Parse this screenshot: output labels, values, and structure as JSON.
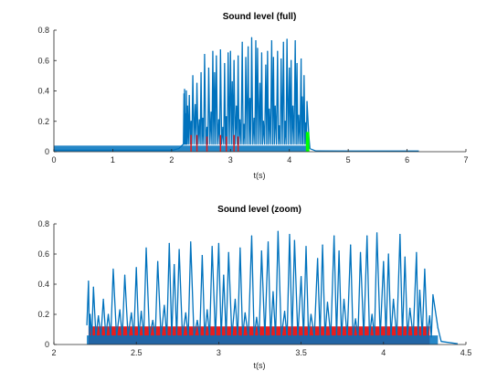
{
  "chart_data": [
    {
      "type": "line",
      "title": "Sound level (full)",
      "xlabel": "t(s)",
      "ylabel": "",
      "xlim": [
        0,
        7
      ],
      "ylim": [
        0,
        0.8
      ],
      "xticks": [
        "0",
        "1",
        "2",
        "3",
        "4",
        "5",
        "6",
        "7"
      ],
      "yticks": [
        "0",
        "0.2",
        "0.4",
        "0.6",
        "0.8"
      ],
      "series": [
        {
          "color": "#0072bd",
          "kind": "level",
          "x": [
            0,
            2.02,
            2.12,
            2.2,
            2.21,
            2.22,
            2.24,
            2.25,
            2.27,
            2.3,
            2.33,
            2.36,
            2.4,
            2.43,
            2.47,
            2.5,
            2.53,
            2.56,
            2.6,
            2.63,
            2.67,
            2.7,
            2.73,
            2.76,
            2.8,
            2.83,
            2.87,
            2.9,
            2.93,
            2.96,
            3.0,
            3.03,
            3.06,
            3.1,
            3.13,
            3.16,
            3.2,
            3.23,
            3.26,
            3.3,
            3.33,
            3.36,
            3.4,
            3.43,
            3.46,
            3.5,
            3.53,
            3.56,
            3.6,
            3.63,
            3.66,
            3.7,
            3.73,
            3.76,
            3.8,
            3.83,
            3.86,
            3.9,
            3.93,
            3.96,
            4.0,
            4.03,
            4.06,
            4.1,
            4.13,
            4.16,
            4.2,
            4.22,
            4.25,
            4.28,
            4.3,
            4.33
          ],
          "y": [
            0.01,
            0.01,
            0.02,
            0.05,
            0.38,
            0.41,
            0.25,
            0.4,
            0.3,
            0.37,
            0.2,
            0.5,
            0.31,
            0.45,
            0.21,
            0.52,
            0.22,
            0.64,
            0.16,
            0.55,
            0.26,
            0.66,
            0.52,
            0.63,
            0.21,
            0.67,
            0.16,
            0.58,
            0.23,
            0.65,
            0.66,
            0.46,
            0.6,
            0.3,
            0.63,
            0.21,
            0.72,
            0.18,
            0.62,
            0.69,
            0.35,
            0.75,
            0.22,
            0.73,
            0.68,
            0.45,
            0.65,
            0.2,
            0.57,
            0.66,
            0.28,
            0.73,
            0.62,
            0.3,
            0.66,
            0.17,
            0.61,
            0.72,
            0.2,
            0.74,
            0.55,
            0.6,
            0.3,
            0.73,
            0.58,
            0.24,
            0.61,
            0.36,
            0.5,
            0.19,
            0.33,
            0.11
          ]
        },
        {
          "color": "#e81d1d",
          "kind": "marks",
          "x": [
            2.33,
            2.43,
            2.6,
            2.83,
            2.93,
            3.06,
            3.13
          ],
          "y": [
            0.11,
            0.11,
            0.1,
            0.11,
            0.1,
            0.11,
            0.1
          ]
        },
        {
          "color": "#00ff00",
          "kind": "band",
          "x": [
            4.28,
            4.34
          ],
          "y": [
            0.13,
            0.13
          ]
        }
      ]
    },
    {
      "type": "line",
      "title": "Sound level (zoom)",
      "xlabel": "t(s)",
      "ylabel": "",
      "xlim": [
        2,
        4.5
      ],
      "ylim": [
        0,
        0.8
      ],
      "xticks": [
        "2",
        "2.5",
        "3",
        "3.5",
        "4",
        "4.5"
      ],
      "yticks": [
        "0",
        "0.2",
        "0.4",
        "0.6",
        "0.8"
      ],
      "series": [
        {
          "color": "#e81d1d",
          "kind": "band",
          "x": [
            2.21,
            4.28
          ],
          "y": [
            0.12,
            0.12
          ]
        },
        {
          "color": "#0072bd",
          "kind": "level",
          "x": [
            2.2,
            2.21,
            2.22,
            2.24,
            2.27,
            2.3,
            2.33,
            2.36,
            2.4,
            2.43,
            2.47,
            2.5,
            2.53,
            2.56,
            2.6,
            2.63,
            2.67,
            2.7,
            2.73,
            2.76,
            2.8,
            2.83,
            2.87,
            2.9,
            2.93,
            2.96,
            3.0,
            3.03,
            3.06,
            3.1,
            3.13,
            3.16,
            3.2,
            3.23,
            3.26,
            3.3,
            3.33,
            3.36,
            3.4,
            3.43,
            3.46,
            3.5,
            3.53,
            3.56,
            3.6,
            3.63,
            3.66,
            3.7,
            3.73,
            3.76,
            3.8,
            3.83,
            3.86,
            3.9,
            3.93,
            3.96,
            4.0,
            4.03,
            4.06,
            4.1,
            4.13,
            4.16,
            4.2,
            4.22,
            4.25,
            4.28,
            4.3,
            4.33
          ],
          "y": [
            0.13,
            0.42,
            0.2,
            0.38,
            0.19,
            0.3,
            0.2,
            0.5,
            0.23,
            0.46,
            0.21,
            0.51,
            0.22,
            0.64,
            0.16,
            0.55,
            0.26,
            0.67,
            0.53,
            0.63,
            0.21,
            0.68,
            0.16,
            0.59,
            0.23,
            0.65,
            0.67,
            0.46,
            0.61,
            0.3,
            0.64,
            0.21,
            0.72,
            0.18,
            0.62,
            0.68,
            0.35,
            0.75,
            0.22,
            0.73,
            0.69,
            0.45,
            0.65,
            0.2,
            0.57,
            0.66,
            0.28,
            0.72,
            0.62,
            0.3,
            0.66,
            0.17,
            0.61,
            0.72,
            0.2,
            0.74,
            0.55,
            0.6,
            0.3,
            0.73,
            0.58,
            0.24,
            0.61,
            0.36,
            0.5,
            0.19,
            0.33,
            0.11
          ]
        }
      ]
    }
  ]
}
